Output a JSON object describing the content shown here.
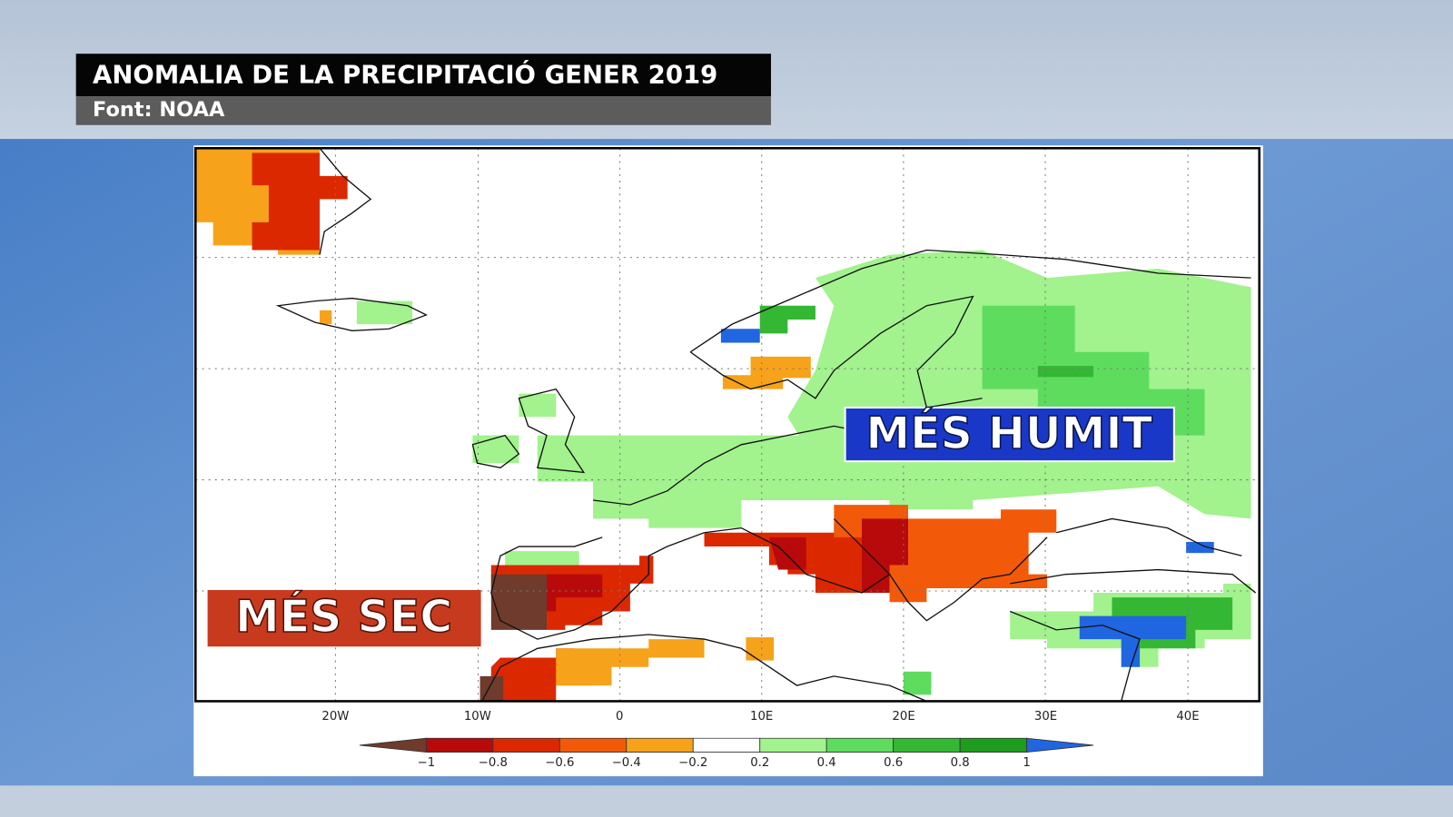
{
  "header": {
    "title": "ANOMALIA DE LA PRECIPITACIÓ GENER 2019",
    "source": "Font: NOAA"
  },
  "map": {
    "longitude_labels": [
      "20W",
      "10W",
      "0",
      "10E",
      "20E",
      "30E",
      "40E"
    ],
    "annotations": {
      "wet": "MÉS HUMIT",
      "dry": "MÉS SEC"
    }
  },
  "legend": {
    "ticks": [
      "−1",
      "−0.8",
      "−0.6",
      "−0.4",
      "−0.2",
      "0.2",
      "0.4",
      "0.6",
      "0.8",
      "1"
    ],
    "colors": [
      "#6e3b2c",
      "#b80a0a",
      "#dc2800",
      "#f25a0a",
      "#f7a21b",
      "#ffffff",
      "#a2f28e",
      "#5edc5e",
      "#34b834",
      "#1e9c1e",
      "#2066e0"
    ]
  }
}
